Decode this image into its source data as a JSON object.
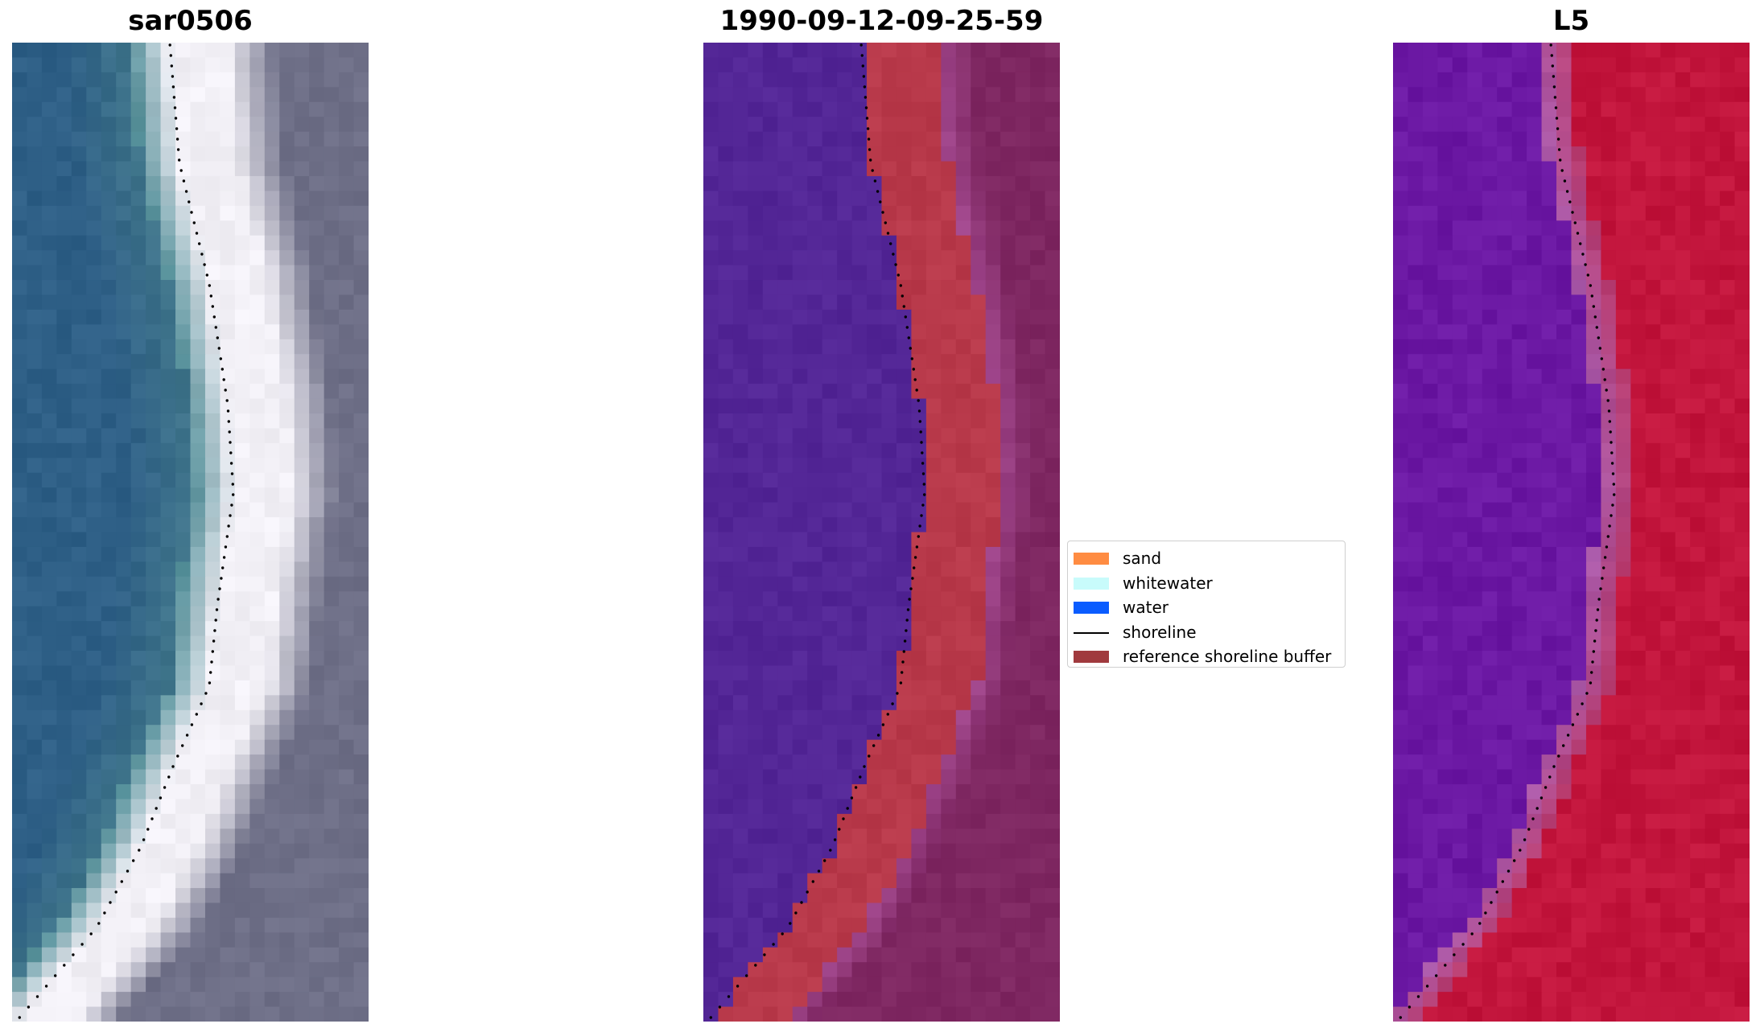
{
  "panels": [
    {
      "title": "sar0506"
    },
    {
      "title": "1990-09-12-09-25-59"
    },
    {
      "title": "L5"
    }
  ],
  "legend": {
    "entries": [
      {
        "label": "sand",
        "color": "#ff8c42"
      },
      {
        "label": "whitewater",
        "color": "#c8fbfb"
      },
      {
        "label": "water",
        "color": "#0a5cff"
      },
      {
        "label": "shoreline",
        "color": "#000000"
      },
      {
        "label": "reference shoreline buffer",
        "color": "#a03a3e"
      }
    ]
  },
  "colors": {
    "water_rgb": "#2e5f86",
    "surf_rgb": "#f2f0f6",
    "land_rgb": "#6e6f87",
    "water_class": "#532696",
    "buffer_class": "#b8394a",
    "land_class": "#7e2761",
    "water_l5": "#6b18a3",
    "land_l5": "#c2153c"
  }
}
